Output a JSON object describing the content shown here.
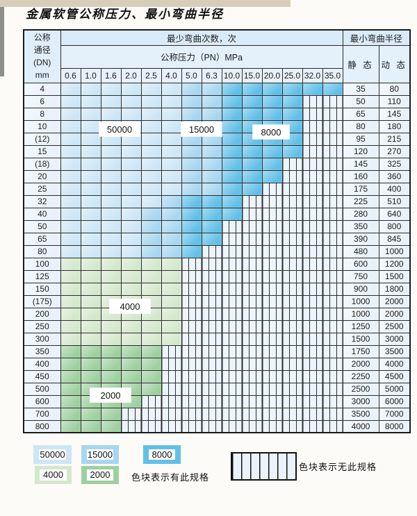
{
  "page": {
    "title": "金属软管公称压力、最小弯曲半径"
  },
  "colors": {
    "b1": "#cde6f6",
    "b2": "#a8d6f0",
    "b3": "#62c0e8",
    "g1": "#d4e8cc",
    "g2": "#9ed09f"
  },
  "table": {
    "corner_lines": [
      "公称",
      "通径",
      "(DN)",
      "mm"
    ],
    "top_header": "最少弯曲次数，次",
    "radius_header": "最小弯曲半径",
    "pressure_header": "公称压力（PN）MPa",
    "static_label": "静 态",
    "dynamic_label": "动 态",
    "pressure_columns": [
      "0.6",
      "1.0",
      "1.6",
      "2.0",
      "2.5",
      "4.0",
      "5.0",
      "6.3",
      "10.0",
      "15.0",
      "20.0",
      "25.0",
      "32.0",
      "35.0"
    ],
    "rows": [
      {
        "dn": "4",
        "static": "35",
        "dynamic": "80",
        "cells": [
          "b1",
          "b1",
          "b1",
          "b1",
          "b1",
          "b1",
          "b2",
          "b2",
          "b3",
          "b3",
          "b3",
          "b3",
          "b3",
          "b3"
        ]
      },
      {
        "dn": "6",
        "static": "50",
        "dynamic": "110",
        "cells": [
          "b1",
          "b1",
          "b1",
          "b1",
          "b1",
          "b1",
          "b2",
          "b2",
          "b3",
          "b3",
          "b3",
          "b3",
          "x",
          "x"
        ]
      },
      {
        "dn": "8",
        "static": "65",
        "dynamic": "145",
        "cells": [
          "b1",
          "b1",
          "b1",
          "b1",
          "b1",
          "b1",
          "b2",
          "b2",
          "b3",
          "b3",
          "b3",
          "b3",
          "x",
          "x"
        ]
      },
      {
        "dn": "10",
        "static": "80",
        "dynamic": "180",
        "cells": [
          "b1",
          "b1",
          "b1",
          "b1",
          "b1",
          "b1",
          "b2",
          "b2",
          "b3",
          "b3",
          "b3",
          "b3",
          "x",
          "x"
        ]
      },
      {
        "dn": "(12)",
        "static": "95",
        "dynamic": "215",
        "cells": [
          "b1",
          "b1",
          "b1",
          "b1",
          "b1",
          "b1",
          "b2",
          "b2",
          "b3",
          "b3",
          "b3",
          "b3",
          "x",
          "x"
        ]
      },
      {
        "dn": "15",
        "static": "120",
        "dynamic": "270",
        "cells": [
          "b1",
          "b1",
          "b1",
          "b1",
          "b1",
          "b1",
          "b2",
          "b2",
          "b3",
          "b3",
          "b3",
          "b3",
          "x",
          "x"
        ]
      },
      {
        "dn": "(18)",
        "static": "145",
        "dynamic": "325",
        "cells": [
          "b1",
          "b1",
          "b1",
          "b1",
          "b1",
          "b1",
          "b2",
          "b2",
          "b3",
          "b3",
          "b3",
          "x",
          "x",
          "x"
        ]
      },
      {
        "dn": "20",
        "static": "160",
        "dynamic": "360",
        "cells": [
          "b1",
          "b1",
          "b1",
          "b1",
          "b1",
          "b1",
          "b2",
          "b2",
          "b3",
          "b3",
          "b3",
          "x",
          "x",
          "x"
        ]
      },
      {
        "dn": "25",
        "static": "175",
        "dynamic": "400",
        "cells": [
          "b1",
          "b1",
          "b1",
          "b1",
          "b1",
          "b1",
          "b2",
          "b2",
          "b3",
          "b3",
          "x",
          "x",
          "x",
          "x"
        ]
      },
      {
        "dn": "32",
        "static": "225",
        "dynamic": "510",
        "cells": [
          "b1",
          "b1",
          "b1",
          "b1",
          "b1",
          "b2",
          "b3",
          "b3",
          "b3",
          "x",
          "x",
          "x",
          "x",
          "x"
        ]
      },
      {
        "dn": "40",
        "static": "280",
        "dynamic": "640",
        "cells": [
          "b1",
          "b1",
          "b1",
          "b1",
          "b2",
          "b2",
          "b3",
          "b3",
          "b3",
          "x",
          "x",
          "x",
          "x",
          "x"
        ]
      },
      {
        "dn": "50",
        "static": "350",
        "dynamic": "800",
        "cells": [
          "b1",
          "b1",
          "b1",
          "b1",
          "b2",
          "b2",
          "b3",
          "b3",
          "x",
          "x",
          "x",
          "x",
          "x",
          "x"
        ]
      },
      {
        "dn": "65",
        "static": "390",
        "dynamic": "845",
        "cells": [
          "b1",
          "b1",
          "b1",
          "b1",
          "b2",
          "b2",
          "b3",
          "b3",
          "x",
          "x",
          "x",
          "x",
          "x",
          "x"
        ]
      },
      {
        "dn": "80",
        "static": "480",
        "dynamic": "1000",
        "cells": [
          "b1",
          "b1",
          "b1",
          "b1",
          "b2",
          "b2",
          "b3",
          "x",
          "x",
          "x",
          "x",
          "x",
          "x",
          "x"
        ]
      },
      {
        "dn": "100",
        "static": "600",
        "dynamic": "1200",
        "cells": [
          "g1",
          "g1",
          "g1",
          "g1",
          "g1",
          "g1",
          "x",
          "x",
          "x",
          "x",
          "x",
          "x",
          "x",
          "x"
        ]
      },
      {
        "dn": "125",
        "static": "750",
        "dynamic": "1500",
        "cells": [
          "g1",
          "g1",
          "g1",
          "g1",
          "g1",
          "g1",
          "x",
          "x",
          "x",
          "x",
          "x",
          "x",
          "x",
          "x"
        ]
      },
      {
        "dn": "150",
        "static": "900",
        "dynamic": "1800",
        "cells": [
          "g1",
          "g1",
          "g1",
          "g1",
          "g1",
          "g1",
          "x",
          "x",
          "x",
          "x",
          "x",
          "x",
          "x",
          "x"
        ]
      },
      {
        "dn": "(175)",
        "static": "1000",
        "dynamic": "2000",
        "cells": [
          "g1",
          "g1",
          "g1",
          "g1",
          "g1",
          "g1",
          "x",
          "x",
          "x",
          "x",
          "x",
          "x",
          "x",
          "x"
        ]
      },
      {
        "dn": "200",
        "static": "1000",
        "dynamic": "2000",
        "cells": [
          "g1",
          "g1",
          "g1",
          "g1",
          "g1",
          "g1",
          "x",
          "x",
          "x",
          "x",
          "x",
          "x",
          "x",
          "x"
        ]
      },
      {
        "dn": "250",
        "static": "1250",
        "dynamic": "2500",
        "cells": [
          "g1",
          "g1",
          "g1",
          "g1",
          "g1",
          "g1",
          "x",
          "x",
          "x",
          "x",
          "x",
          "x",
          "x",
          "x"
        ]
      },
      {
        "dn": "300",
        "static": "1500",
        "dynamic": "3000",
        "cells": [
          "g1",
          "g1",
          "g1",
          "g1",
          "g1",
          "g1",
          "x",
          "x",
          "x",
          "x",
          "x",
          "x",
          "x",
          "x"
        ]
      },
      {
        "dn": "350",
        "static": "1750",
        "dynamic": "3500",
        "cells": [
          "g2",
          "g2",
          "g2",
          "g2",
          "g2",
          "x",
          "x",
          "x",
          "x",
          "x",
          "x",
          "x",
          "x",
          "x"
        ]
      },
      {
        "dn": "400",
        "static": "2000",
        "dynamic": "4000",
        "cells": [
          "g2",
          "g2",
          "g2",
          "g2",
          "g2",
          "x",
          "x",
          "x",
          "x",
          "x",
          "x",
          "x",
          "x",
          "x"
        ]
      },
      {
        "dn": "450",
        "static": "2250",
        "dynamic": "4500",
        "cells": [
          "g2",
          "g2",
          "g2",
          "g2",
          "g2",
          "x",
          "x",
          "x",
          "x",
          "x",
          "x",
          "x",
          "x",
          "x"
        ]
      },
      {
        "dn": "500",
        "static": "2500",
        "dynamic": "5000",
        "cells": [
          "g2",
          "g2",
          "g2",
          "g2",
          "g2",
          "x",
          "x",
          "x",
          "x",
          "x",
          "x",
          "x",
          "x",
          "x"
        ]
      },
      {
        "dn": "600",
        "static": "3000",
        "dynamic": "6000",
        "cells": [
          "g2",
          "g2",
          "g2",
          "g2",
          "x",
          "x",
          "x",
          "x",
          "x",
          "x",
          "x",
          "x",
          "x",
          "x"
        ]
      },
      {
        "dn": "700",
        "static": "3500",
        "dynamic": "7000",
        "cells": [
          "g2",
          "g2",
          "g2",
          "x",
          "x",
          "x",
          "x",
          "x",
          "x",
          "x",
          "x",
          "x",
          "x",
          "x"
        ]
      },
      {
        "dn": "800",
        "static": "4000",
        "dynamic": "8000",
        "cells": [
          "g2",
          "g2",
          "g2",
          "x",
          "x",
          "x",
          "x",
          "x",
          "x",
          "x",
          "x",
          "x",
          "x",
          "x"
        ]
      }
    ]
  },
  "overlay_labels": [
    {
      "text": "50000"
    },
    {
      "text": "15000"
    },
    {
      "text": "8000"
    },
    {
      "text": "4000"
    },
    {
      "text": "2000"
    }
  ],
  "legend": {
    "items": [
      {
        "value": "50000",
        "color": "#cde6f6"
      },
      {
        "value": "15000",
        "color": "#a8d6f0"
      },
      {
        "value": "8000",
        "color": "#62c0e8"
      },
      {
        "value": "4000",
        "color": "#d4e8cc"
      },
      {
        "value": "2000",
        "color": "#9ed09f"
      }
    ],
    "has_spec_text": "色块表示有此规格",
    "no_spec_text": "色块表示无此规格"
  }
}
